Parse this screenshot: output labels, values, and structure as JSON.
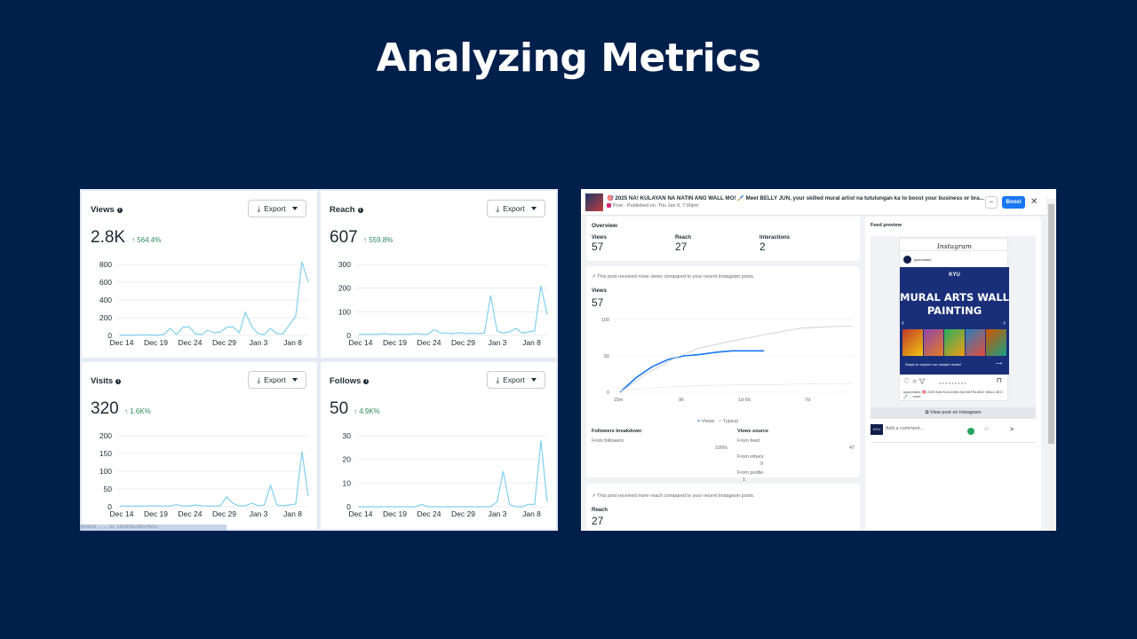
{
  "slide": {
    "title": "Analyzing Metrics"
  },
  "metrics": {
    "export_label": "Export",
    "cards": [
      {
        "title": "Views",
        "value": "2.8K",
        "change": "↑ 564.4%",
        "yticks": [
          "800",
          "600",
          "400",
          "200",
          "0"
        ],
        "xticks": [
          "Dec 14",
          "Dec 19",
          "Dec 24",
          "Dec 29",
          "Jan 3",
          "Jan 8"
        ]
      },
      {
        "title": "Reach",
        "value": "607",
        "change": "↑ 559.8%",
        "yticks": [
          "300",
          "200",
          "100",
          "0"
        ],
        "xticks": [
          "Dec 14",
          "Dec 19",
          "Dec 24",
          "Dec 29",
          "Jan 3",
          "Jan 8"
        ]
      },
      {
        "title": "Visits",
        "value": "320",
        "change": "↑ 1.6K%",
        "yticks": [
          "200",
          "150",
          "100",
          "50",
          "0"
        ],
        "xticks": [
          "Dec 14",
          "Dec 19",
          "Dec 24",
          "Dec 29",
          "Jan 3",
          "Jan 8"
        ]
      },
      {
        "title": "Follows",
        "value": "50",
        "change": "↑ 4.9K%",
        "yticks": [
          "30",
          "20",
          "10",
          "0"
        ],
        "xticks": [
          "Dec 14",
          "Dec 19",
          "Dec 24",
          "Dec 29",
          "Jan 3",
          "Jan 8"
        ]
      }
    ],
    "strip_text": "|85658 ... ... id: 16085828614662"
  },
  "chart_data": [
    {
      "type": "line",
      "title": "Views",
      "ylim": [
        0,
        900
      ],
      "values": [
        5,
        5,
        5,
        5,
        8,
        5,
        5,
        10,
        80,
        10,
        90,
        100,
        20,
        10,
        60,
        30,
        40,
        90,
        100,
        30,
        260,
        100,
        20,
        10,
        80,
        20,
        20,
        120,
        220,
        830,
        600
      ]
    },
    {
      "type": "line",
      "title": "Reach",
      "ylim": [
        0,
        300
      ],
      "values": [
        5,
        5,
        5,
        5,
        8,
        5,
        5,
        5,
        5,
        8,
        5,
        5,
        25,
        10,
        10,
        8,
        12,
        8,
        10,
        8,
        10,
        170,
        20,
        10,
        15,
        30,
        10,
        15,
        20,
        210,
        90
      ]
    },
    {
      "type": "line",
      "title": "Visits",
      "ylim": [
        0,
        200
      ],
      "values": [
        2,
        2,
        2,
        2,
        2,
        3,
        2,
        2,
        2,
        6,
        2,
        2,
        5,
        3,
        2,
        2,
        3,
        28,
        10,
        2,
        3,
        10,
        3,
        5,
        60,
        5,
        3,
        5,
        8,
        155,
        30
      ]
    },
    {
      "type": "line",
      "title": "Follows",
      "ylim": [
        0,
        30
      ],
      "values": [
        0,
        0,
        0,
        0,
        0,
        0,
        0,
        0,
        0,
        0,
        1,
        0,
        0,
        0,
        0,
        0,
        0,
        0,
        0,
        0,
        0,
        0,
        2,
        15,
        1,
        0,
        0,
        1,
        1,
        28,
        2
      ]
    },
    {
      "type": "line",
      "title": "Post Views",
      "xticks": [
        "15m",
        "9h",
        "1d 6h",
        "7d"
      ],
      "yticks": [
        "100",
        "50",
        "0"
      ],
      "series": [
        {
          "name": "Views",
          "values": [
            0,
            20,
            35,
            45,
            50,
            52,
            55,
            57,
            57,
            57
          ]
        },
        {
          "name": "Typical",
          "values": [
            0,
            25,
            45,
            60,
            68,
            75,
            82,
            88,
            90,
            91
          ]
        }
      ]
    }
  ],
  "post": {
    "title": "🎯 2025 NA! KULAYAN NA NATIN ANG WALL MO! 🖌️ Meet BELLY JUN, your skilled mural artist na tutulungan ka to boost your business or bra...",
    "subtitle": "Post · Published on: Thu Jan 9, 7:00pm",
    "minus": "−",
    "boost_label": "Boost",
    "close": "✕",
    "overview_label": "Overview",
    "stats": [
      {
        "label": "Views",
        "value": "57"
      },
      {
        "label": "Reach",
        "value": "27"
      },
      {
        "label": "Interactions",
        "value": "2"
      }
    ],
    "views_note": "This post received more views compared to your recent Instagram posts.",
    "views_label": "Views",
    "views_value": "57",
    "legend_views": "Views",
    "legend_typical": "Typical",
    "followers_breakdown_label": "Followers breakdown",
    "from_followers_label": "From followers",
    "from_followers_value": "100%",
    "views_source_label": "Views source",
    "from_feed_label": "From feed",
    "from_feed_value": "47",
    "from_others_label": "From others",
    "from_others_value": "9",
    "from_profile_label": "From profile",
    "from_profile_value": "1",
    "reach_note": "This post received more reach compared to your recent Instagram posts.",
    "reach_label": "Reach",
    "reach_value": "27",
    "feed_preview_label": "Feed preview",
    "ig_brand": "Instagram",
    "ig_account": "kyucreates",
    "mural_logo": "KYU",
    "mural_title": "MURAL ARTS WALL PAINTING",
    "swipe_text": "Swipe to explore our sample works!",
    "caption": "kyucreates 🎯 2025 NA! KULAYAN NA NATIN ANG WALL MO! 🖌️ ... more",
    "view_on_ig": "View post on Instagram",
    "comment_placeholder": "Add a comment...",
    "avatar_text": "KYU"
  }
}
